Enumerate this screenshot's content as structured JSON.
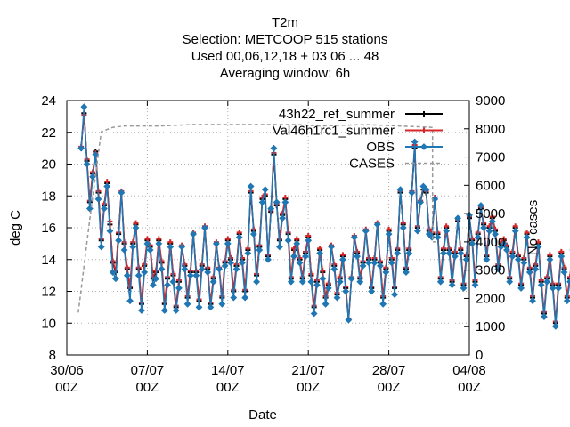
{
  "chart_data": {
    "type": "line",
    "title_lines": [
      "T2m",
      "Selection: METCOOP    515 stations",
      "Used  00,06,12,18  + 03 06 ... 48",
      "Averaging window:  6h"
    ],
    "xlabel": "Date",
    "ylabel": "deg C",
    "y2label": "No cases",
    "xlim": [
      0,
      35
    ],
    "ylim": [
      8,
      24
    ],
    "y2lim": [
      0,
      9000
    ],
    "xticks": [
      {
        "x": 0,
        "label": [
          "30/06",
          "00Z"
        ]
      },
      {
        "x": 7,
        "label": [
          "07/07",
          "00Z"
        ]
      },
      {
        "x": 14,
        "label": [
          "14/07",
          "00Z"
        ]
      },
      {
        "x": 21,
        "label": [
          "21/07",
          "00Z"
        ]
      },
      {
        "x": 28,
        "label": [
          "28/07",
          "00Z"
        ]
      },
      {
        "x": 35,
        "label": [
          "04/08",
          "00Z"
        ]
      }
    ],
    "yticks": [
      8,
      10,
      12,
      14,
      16,
      18,
      20,
      22,
      24
    ],
    "y2ticks": [
      0,
      1000,
      2000,
      3000,
      4000,
      5000,
      6000,
      7000,
      8000,
      9000
    ],
    "grid": true,
    "legend_position": "top-right",
    "x_start": 1.25,
    "x_step": 0.25,
    "series": [
      {
        "name": "43h22_ref_summer",
        "axis": "y",
        "color": "#000000",
        "marker": "plus",
        "values": [
          21.0,
          23.2,
          20.2,
          17.6,
          19.4,
          20.8,
          18.2,
          15.2,
          17.4,
          18.8,
          16.2,
          13.8,
          13.2,
          15.6,
          18.2,
          15.0,
          13.4,
          12.2,
          15.0,
          16.2,
          13.4,
          11.2,
          13.6,
          15.2,
          14.8,
          12.8,
          13.2,
          15.2,
          13.8,
          11.2,
          12.8,
          15.0,
          13.0,
          11.0,
          12.6,
          14.8,
          13.6,
          11.6,
          13.2,
          15.6,
          13.2,
          11.4,
          13.6,
          16.0,
          13.4,
          11.2,
          12.8,
          15.0,
          13.4,
          11.6,
          13.8,
          15.2,
          14.0,
          12.0,
          13.6,
          15.6,
          14.0,
          12.0,
          14.6,
          18.2,
          15.8,
          13.0,
          14.8,
          17.8,
          18.0,
          14.2,
          17.0,
          20.6,
          17.4,
          15.2,
          16.8,
          17.8,
          15.6,
          12.8,
          14.6,
          15.2,
          14.0,
          12.8,
          14.4,
          15.4,
          13.0,
          11.0,
          12.6,
          14.6,
          13.2,
          11.6,
          12.4,
          14.8,
          13.6,
          11.8,
          12.8,
          14.2,
          12.2,
          10.2,
          12.8,
          15.4,
          14.4,
          12.8,
          13.8,
          15.8,
          14.0,
          12.2,
          14.0,
          16.2,
          13.8,
          11.6,
          13.4,
          15.8,
          14.0,
          12.2,
          14.6,
          18.2,
          16.2,
          13.4,
          14.6,
          18.2,
          21.0,
          16.0,
          17.6,
          18.4,
          18.2,
          15.8,
          15.6,
          17.8,
          15.6,
          12.8,
          14.6,
          16.0,
          14.6,
          12.6,
          14.4,
          16.4,
          14.6,
          12.4,
          14.2,
          16.6,
          15.2,
          12.6,
          15.6,
          17.2,
          16.2,
          14.2,
          16.0,
          16.6,
          15.8,
          13.6,
          15.0,
          15.2,
          14.8,
          12.8,
          14.4,
          16.0,
          14.2,
          12.4,
          14.0,
          15.6,
          13.4,
          11.6,
          13.6,
          15.0,
          12.6,
          10.6,
          12.8,
          14.2,
          12.4,
          10.0,
          12.4,
          14.4,
          13.4,
          11.6,
          12.8,
          14.8,
          13.2,
          11.0,
          13.8,
          16.0,
          14.8,
          12.6,
          13.6,
          15.6,
          14.4,
          12.2,
          14.0,
          14.0
        ]
      },
      {
        "name": "Val46h1rc1_summer",
        "axis": "y",
        "color": "#d62728",
        "marker": "plus",
        "values": [
          21.1,
          23.1,
          20.3,
          17.7,
          19.5,
          20.7,
          18.3,
          15.3,
          17.5,
          18.9,
          16.4,
          13.9,
          13.3,
          15.7,
          18.3,
          15.1,
          13.5,
          12.3,
          15.1,
          16.3,
          13.5,
          11.3,
          13.7,
          15.3,
          14.9,
          12.9,
          13.3,
          15.3,
          13.9,
          11.3,
          12.9,
          15.1,
          13.1,
          11.1,
          12.7,
          14.9,
          13.7,
          11.7,
          13.3,
          15.7,
          13.3,
          11.5,
          13.7,
          16.1,
          13.5,
          11.3,
          12.9,
          15.1,
          13.5,
          11.7,
          13.9,
          15.3,
          14.1,
          12.1,
          13.7,
          15.7,
          14.1,
          12.1,
          14.7,
          18.3,
          15.9,
          13.1,
          14.9,
          17.9,
          18.1,
          14.3,
          17.1,
          20.7,
          17.5,
          15.3,
          16.9,
          17.9,
          15.7,
          12.9,
          14.7,
          15.3,
          14.1,
          12.9,
          14.5,
          15.5,
          13.1,
          11.1,
          12.7,
          14.7,
          13.3,
          11.7,
          12.5,
          14.9,
          13.7,
          11.9,
          12.9,
          14.3,
          12.3,
          10.3,
          12.9,
          15.5,
          14.5,
          12.9,
          13.9,
          15.9,
          14.1,
          12.3,
          14.1,
          16.3,
          13.9,
          11.7,
          13.5,
          15.9,
          14.1,
          12.3,
          14.7,
          18.3,
          16.3,
          13.5,
          14.7,
          18.3,
          21.2,
          16.1,
          17.7,
          18.6,
          18.3,
          15.9,
          15.7,
          17.9,
          15.7,
          12.9,
          14.7,
          16.1,
          14.7,
          12.7,
          14.5,
          16.5,
          14.7,
          12.5,
          14.3,
          16.7,
          15.3,
          12.7,
          15.7,
          17.3,
          16.3,
          14.3,
          16.1,
          16.7,
          15.9,
          13.7,
          15.1,
          15.3,
          14.9,
          12.9,
          14.5,
          16.1,
          14.3,
          12.5,
          14.1,
          15.7,
          13.5,
          11.7,
          13.7,
          15.1,
          12.7,
          10.7,
          12.9,
          14.3,
          12.5,
          10.1,
          12.5,
          14.5,
          13.5,
          11.7,
          12.9,
          14.9,
          13.3,
          11.1,
          13.9,
          16.1,
          14.9,
          12.7,
          13.7,
          15.7,
          14.5,
          12.3,
          14.1,
          14.1
        ]
      },
      {
        "name": "OBS",
        "axis": "y",
        "color": "#1f77b4",
        "marker": "diamond",
        "values": [
          21.0,
          23.6,
          20.0,
          17.2,
          19.2,
          20.6,
          17.8,
          14.8,
          17.2,
          18.6,
          15.8,
          13.2,
          12.8,
          15.2,
          18.2,
          14.6,
          13.0,
          11.4,
          14.8,
          16.0,
          13.0,
          10.8,
          13.2,
          15.0,
          14.6,
          12.4,
          12.8,
          15.0,
          13.4,
          10.8,
          12.4,
          14.8,
          12.6,
          10.8,
          12.2,
          14.8,
          13.4,
          11.2,
          13.0,
          15.6,
          13.0,
          11.0,
          13.4,
          16.0,
          13.2,
          11.0,
          12.6,
          15.0,
          13.4,
          11.2,
          13.6,
          15.0,
          13.8,
          11.6,
          13.4,
          15.4,
          13.8,
          11.6,
          14.4,
          18.6,
          15.6,
          12.6,
          14.6,
          17.6,
          18.4,
          14.0,
          17.2,
          21.0,
          17.6,
          14.8,
          16.6,
          17.6,
          15.2,
          12.6,
          14.2,
          15.0,
          13.8,
          12.6,
          14.2,
          15.2,
          12.6,
          10.6,
          12.4,
          14.4,
          12.8,
          11.2,
          12.2,
          14.8,
          13.4,
          11.6,
          12.6,
          14.0,
          12.0,
          10.2,
          12.8,
          15.4,
          14.2,
          12.6,
          13.6,
          15.8,
          13.8,
          12.0,
          13.8,
          16.2,
          13.6,
          11.2,
          13.2,
          15.6,
          13.8,
          11.8,
          14.4,
          18.4,
          16.0,
          13.2,
          14.4,
          18.2,
          21.4,
          15.8,
          17.6,
          18.6,
          18.4,
          15.6,
          15.4,
          17.8,
          15.4,
          12.6,
          14.4,
          15.8,
          14.4,
          12.4,
          14.2,
          16.6,
          14.4,
          12.2,
          14.0,
          16.8,
          15.0,
          12.4,
          15.4,
          17.4,
          16.0,
          14.0,
          15.8,
          16.4,
          15.6,
          13.4,
          14.8,
          15.0,
          14.6,
          12.6,
          14.2,
          15.8,
          14.0,
          12.2,
          13.8,
          15.4,
          13.2,
          11.4,
          13.4,
          14.8,
          12.4,
          10.4,
          12.6,
          14.0,
          12.2,
          9.8,
          12.2,
          14.2,
          13.2,
          11.4,
          12.6,
          14.6,
          13.0,
          10.8,
          13.6,
          16.0,
          14.8,
          12.4,
          13.4,
          15.4,
          14.2,
          12.0,
          13.8,
          14.2
        ]
      },
      {
        "name": "CASES",
        "axis": "y2",
        "color": "#999999",
        "style": "dashed",
        "points": [
          [
            1.0,
            1500
          ],
          [
            2.0,
            4800
          ],
          [
            3.0,
            7900
          ],
          [
            4.0,
            8050
          ],
          [
            5.0,
            8100
          ],
          [
            8.0,
            8100
          ],
          [
            11.0,
            8150
          ],
          [
            14.0,
            8150
          ],
          [
            17.5,
            8150
          ],
          [
            20.0,
            8150
          ],
          [
            22.0,
            8100
          ],
          [
            26.0,
            8150
          ],
          [
            31.8,
            8050
          ],
          [
            31.8,
            4000
          ],
          [
            32.3,
            4000
          ]
        ]
      }
    ]
  }
}
